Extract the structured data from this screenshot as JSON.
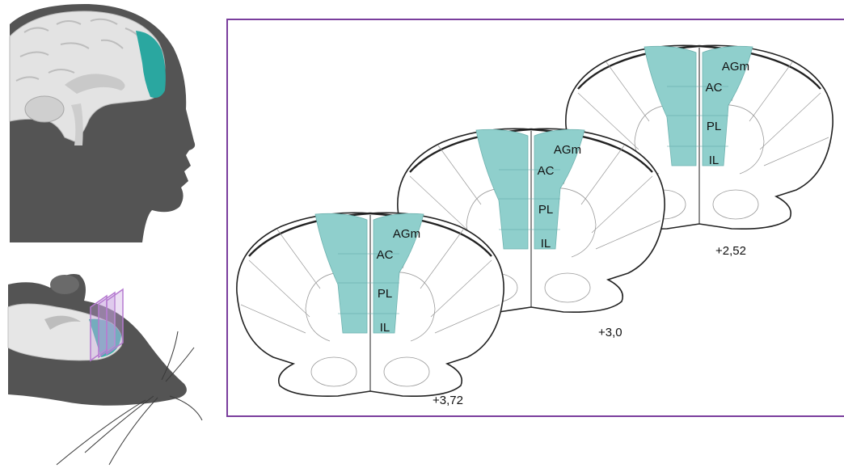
{
  "colors": {
    "highlight": "#8fcfcc",
    "frame": "#7a3e9d",
    "silhouette": "#545454",
    "slice_planes": "#b57ad0",
    "outline": "#222222",
    "thin_line": "#9a9a9a"
  },
  "human_panel": {
    "icon": "human-head-brain-icon"
  },
  "rat_panel": {
    "icon": "rat-head-brain-icon"
  },
  "sections": [
    {
      "coordinate": "+3,72",
      "regions": [
        "AGm",
        "AC",
        "PL",
        "IL"
      ]
    },
    {
      "coordinate": "+3,0",
      "regions": [
        "AGm",
        "AC",
        "PL",
        "IL"
      ]
    },
    {
      "coordinate": "+2,52",
      "regions": [
        "AGm",
        "AC",
        "PL",
        "IL"
      ]
    }
  ]
}
